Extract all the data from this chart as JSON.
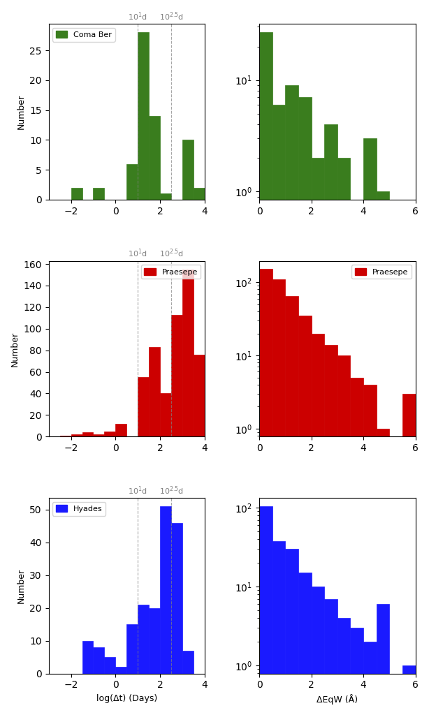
{
  "clusters": [
    "Coma Ber",
    "Praesepe",
    "Hyades"
  ],
  "colors": [
    "#3a7d1e",
    "#cc0000",
    "#1a1aff"
  ],
  "vline1": 1.0,
  "vline2": 2.5,
  "vline1_label": "10$^1$d",
  "vline2_label": "10$^{2.5}$d",
  "coma_dt_bins": [
    -3.0,
    -2.5,
    -2.0,
    -1.5,
    -1.0,
    -0.5,
    0.0,
    0.5,
    1.0,
    1.5,
    2.0,
    2.5,
    3.0,
    3.5,
    4.0
  ],
  "coma_dt_counts": [
    0,
    0,
    2,
    0,
    2,
    0,
    0,
    6,
    28,
    14,
    1,
    0,
    10,
    2,
    0
  ],
  "coma_eqw_bins": [
    0.0,
    0.5,
    1.0,
    1.5,
    2.0,
    2.5,
    3.0,
    3.5,
    4.0,
    4.5,
    5.0,
    5.5,
    6.0
  ],
  "coma_eqw_counts": [
    27,
    6,
    9,
    7,
    2,
    4,
    2,
    0,
    3,
    1,
    0,
    0
  ],
  "prae_dt_bins": [
    -3.0,
    -2.5,
    -2.0,
    -1.5,
    -1.0,
    -0.5,
    0.0,
    0.5,
    1.0,
    1.5,
    2.0,
    2.5,
    3.0,
    3.5,
    4.0
  ],
  "prae_dt_counts": [
    0,
    1,
    2,
    4,
    2,
    5,
    12,
    0,
    55,
    83,
    40,
    113,
    155,
    76,
    0
  ],
  "prae_eqw_bins": [
    0.0,
    0.5,
    1.0,
    1.5,
    2.0,
    2.5,
    3.0,
    3.5,
    4.0,
    4.5,
    5.0,
    5.5,
    6.0
  ],
  "prae_eqw_counts": [
    152,
    110,
    65,
    35,
    20,
    14,
    10,
    5,
    4,
    1,
    0,
    3
  ],
  "hyad_dt_bins": [
    -3.0,
    -2.5,
    -2.0,
    -1.5,
    -1.0,
    -0.5,
    0.0,
    0.5,
    1.0,
    1.5,
    2.0,
    2.5,
    3.0,
    3.5,
    4.0
  ],
  "hyad_dt_counts": [
    0,
    0,
    0,
    10,
    8,
    5,
    2,
    15,
    21,
    20,
    51,
    46,
    7,
    0,
    0
  ],
  "hyad_eqw_bins": [
    0.0,
    0.5,
    1.0,
    1.5,
    2.0,
    2.5,
    3.0,
    3.5,
    4.0,
    4.5,
    5.0,
    5.5,
    6.0
  ],
  "hyad_eqw_counts": [
    105,
    38,
    30,
    15,
    10,
    7,
    4,
    3,
    2,
    6,
    0,
    1
  ],
  "xlabel_dt": "log(Δt) (Days)",
  "xlabel_eqw": "ΔEqW (Å)",
  "ylabel": "Number",
  "xlim_dt": [
    -3,
    4
  ],
  "xlim_eqw": [
    0,
    6
  ]
}
